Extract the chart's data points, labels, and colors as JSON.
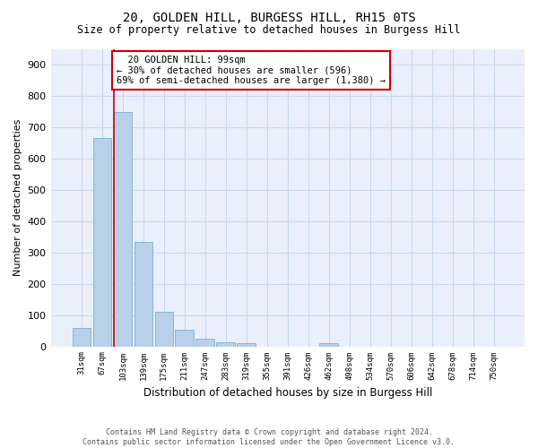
{
  "title": "20, GOLDEN HILL, BURGESS HILL, RH15 0TS",
  "subtitle": "Size of property relative to detached houses in Burgess Hill",
  "xlabel": "Distribution of detached houses by size in Burgess Hill",
  "ylabel": "Number of detached properties",
  "footer_line1": "Contains HM Land Registry data © Crown copyright and database right 2024.",
  "footer_line2": "Contains public sector information licensed under the Open Government Licence v3.0.",
  "annotation_line1": "  20 GOLDEN HILL: 99sqm",
  "annotation_line2": "← 30% of detached houses are smaller (596)",
  "annotation_line3": "69% of semi-detached houses are larger (1,380) →",
  "bar_categories": [
    "31sqm",
    "67sqm",
    "103sqm",
    "139sqm",
    "175sqm",
    "211sqm",
    "247sqm",
    "283sqm",
    "319sqm",
    "355sqm",
    "391sqm",
    "426sqm",
    "462sqm",
    "498sqm",
    "534sqm",
    "570sqm",
    "606sqm",
    "642sqm",
    "678sqm",
    "714sqm",
    "750sqm"
  ],
  "bar_values": [
    58,
    665,
    750,
    335,
    110,
    53,
    25,
    14,
    9,
    0,
    0,
    0,
    10,
    0,
    0,
    0,
    0,
    0,
    0,
    0,
    0
  ],
  "bar_color": "#b8d0ea",
  "bar_edge_color": "#7aafd4",
  "vline_color": "#cc0000",
  "vline_bin_index": 2,
  "annotation_box_color": "#cc0000",
  "grid_color": "#c8d8ec",
  "background_color": "#eaf0fb",
  "ylim": [
    0,
    950
  ],
  "yticks": [
    0,
    100,
    200,
    300,
    400,
    500,
    600,
    700,
    800,
    900
  ]
}
